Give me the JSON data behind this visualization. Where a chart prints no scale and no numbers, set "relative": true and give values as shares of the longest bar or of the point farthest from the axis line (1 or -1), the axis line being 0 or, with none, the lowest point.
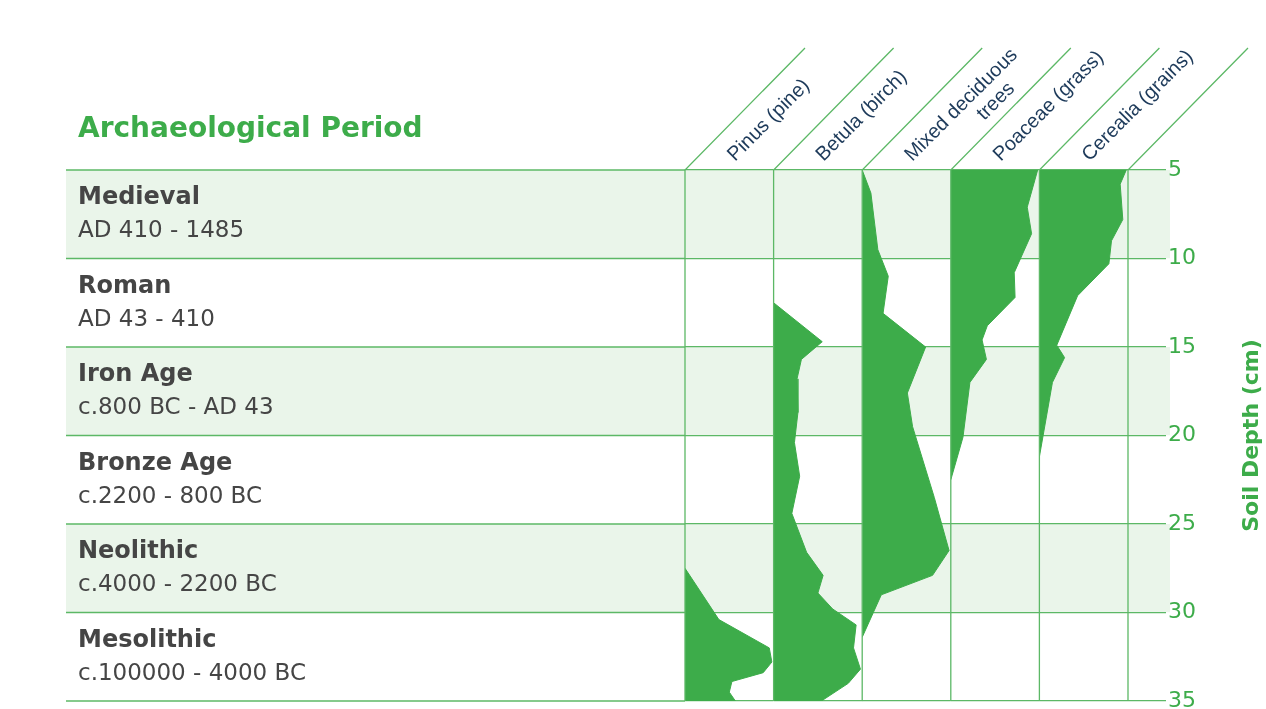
{
  "chart_data": [
    {
      "type": "area",
      "title": "Pinus (pine)",
      "orientation": "horizontal",
      "relative": true,
      "color": "#3dac4a",
      "ylim": [
        35,
        5
      ],
      "yticks": [
        5,
        10,
        15,
        20,
        25,
        30,
        35
      ],
      "grid": "y",
      "tick_labels": false,
      "annotations": [
        "Archaeological Period"
      ],
      "x": [
        27.5,
        30.4,
        32.0,
        32.8,
        33.4,
        33.9,
        34.5,
        35.0
      ],
      "values": [
        0,
        0.39,
        0.97,
        1,
        0.9,
        0.54,
        0.51,
        0.58
      ]
    },
    {
      "type": "area",
      "title": "Betula (birch)",
      "orientation": "horizontal",
      "relative": true,
      "color": "#3dac4a",
      "ylim": [
        35,
        5
      ],
      "yticks": [
        5,
        10,
        15,
        20,
        25,
        30,
        35
      ],
      "grid": "y",
      "tick_labels": false,
      "x": [
        12.5,
        14.7,
        15.7,
        16.8,
        18.7,
        20.4,
        22.3,
        24.4,
        26.6,
        27.9,
        28.9,
        29.8,
        30.7,
        32.0,
        33.2,
        34.0,
        35.0
      ],
      "values": [
        0,
        0.56,
        0.32,
        0.27,
        0.28,
        0.24,
        0.3,
        0.21,
        0.38,
        0.57,
        0.51,
        0.68,
        0.95,
        0.92,
        1,
        0.86,
        0.55
      ]
    },
    {
      "type": "area",
      "title": "Mixed deciduous trees",
      "orientation": "horizontal",
      "relative": true,
      "color": "#3dac4a",
      "ylim": [
        35,
        5
      ],
      "yticks": [
        5,
        10,
        15,
        20,
        25,
        30,
        35
      ],
      "grid": "y",
      "tick_labels": false,
      "x": [
        5,
        6.3,
        9.5,
        11.0,
        13.1,
        15.0,
        17.6,
        19.5,
        23.5,
        26.5,
        27.9,
        29.0,
        31.4
      ],
      "values": [
        0,
        0.1,
        0.18,
        0.3,
        0.24,
        0.73,
        0.52,
        0.58,
        0.83,
        1,
        0.81,
        0.22,
        0
      ]
    },
    {
      "type": "area",
      "title": "Poaceae (grass)",
      "orientation": "horizontal",
      "relative": true,
      "color": "#3dac4a",
      "ylim": [
        35,
        5
      ],
      "yticks": [
        5,
        10,
        15,
        20,
        25,
        30,
        35
      ],
      "grid": "y",
      "tick_labels": false,
      "x": [
        5,
        7.1,
        8.6,
        10.8,
        12.2,
        13.8,
        14.6,
        15.7,
        17.0,
        20.1,
        22.5
      ],
      "values": [
        1,
        0.88,
        0.93,
        0.73,
        0.74,
        0.42,
        0.36,
        0.41,
        0.22,
        0.14,
        0
      ]
    },
    {
      "type": "area",
      "title": "Cerealia (grains)",
      "orientation": "horizontal",
      "relative": true,
      "color": "#3dac4a",
      "ylim": [
        35,
        5
      ],
      "yticks": [
        5,
        10,
        15,
        20,
        25,
        30,
        35
      ],
      "grid": "y",
      "tick_labels": "y",
      "ylabel": "Soil Depth (cm)",
      "bands": [
        {
          "axis": "y",
          "from": 5,
          "to": 10,
          "label": "Medieval\nAD 410 - 1485",
          "color": "#eaf5ea"
        },
        {
          "axis": "y",
          "from": 10,
          "to": 15,
          "label": "Roman\nAD 43 - 410",
          "color": "#ffffff"
        },
        {
          "axis": "y",
          "from": 15,
          "to": 20,
          "label": "Iron Age\nc.800 BC - AD 43",
          "color": "#eaf5ea"
        },
        {
          "axis": "y",
          "from": 20,
          "to": 25,
          "label": "Bronze Age\nc.2200 - 800 BC",
          "color": "#ffffff"
        },
        {
          "axis": "y",
          "from": 25,
          "to": 30,
          "label": "Neolithic\nc.4000 - 2200 BC",
          "color": "#eaf5ea"
        },
        {
          "axis": "y",
          "from": 30,
          "to": 35,
          "label": "Mesolithic\nc.100000 - 4000 BC",
          "color": "#ffffff"
        }
      ],
      "x": [
        5,
        5.8,
        7.8,
        9.0,
        10.3,
        12.1,
        14.9,
        15.6,
        17.0,
        21.2
      ],
      "values": [
        1,
        0.93,
        0.96,
        0.83,
        0.8,
        0.44,
        0.2,
        0.29,
        0.15,
        0
      ]
    }
  ]
}
